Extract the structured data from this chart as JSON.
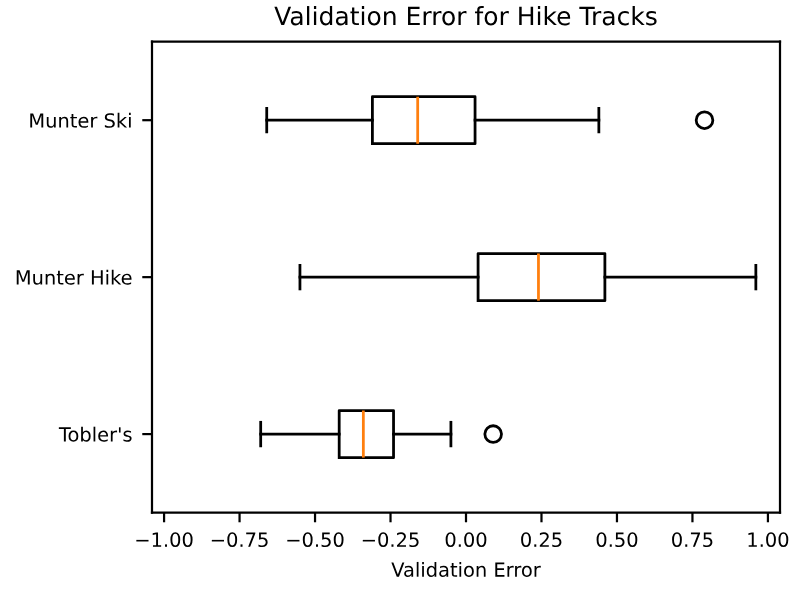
{
  "chart_data": {
    "type": "box",
    "title": "Validation Error for Hike Tracks",
    "xlabel": "Validation Error",
    "orientation": "horizontal",
    "categories": [
      "Munter Ski",
      "Munter Hike",
      "Tobler's"
    ],
    "boxes": [
      {
        "low": -0.66,
        "q1": -0.31,
        "median": -0.16,
        "q3": 0.03,
        "high": 0.44,
        "outliers": [
          0.79
        ]
      },
      {
        "low": -0.55,
        "q1": 0.04,
        "median": 0.24,
        "q3": 0.46,
        "high": 0.96
      },
      {
        "low": -0.68,
        "q1": -0.42,
        "median": -0.34,
        "q3": -0.24,
        "high": -0.05,
        "outliers": [
          0.09
        ]
      }
    ],
    "xlim": [
      -1.04,
      1.04
    ],
    "xticks": [
      {
        "value": -1,
        "label": "−1.00"
      },
      {
        "value": -0.75,
        "label": "−0.75"
      },
      {
        "value": -0.5,
        "label": "−0.50"
      },
      {
        "value": -0.25,
        "label": "−0.25"
      },
      {
        "value": 0,
        "label": "0.00"
      },
      {
        "value": 0.25,
        "label": "0.25"
      },
      {
        "value": 0.5,
        "label": "0.50"
      },
      {
        "value": 0.75,
        "label": "0.75"
      },
      {
        "value": 1,
        "label": "1.00"
      }
    ],
    "grid": false
  }
}
